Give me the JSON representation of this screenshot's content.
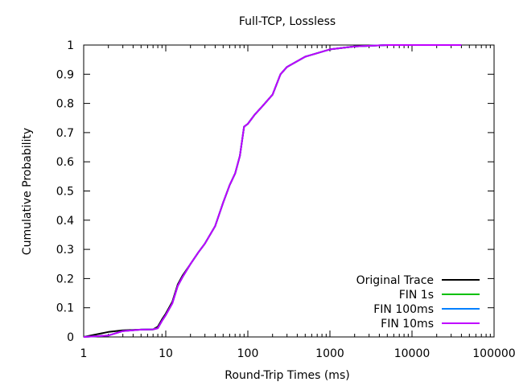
{
  "chart_data": {
    "type": "line",
    "title": "Full-TCP, Lossless",
    "xlabel": "Round-Trip Times (ms)",
    "ylabel": "Cumulative Probability",
    "x_scale": "log10",
    "xlim": [
      1,
      100000
    ],
    "ylim": [
      0,
      1
    ],
    "x_ticks": [
      1,
      10,
      100,
      1000,
      10000,
      100000
    ],
    "x_tick_labels": [
      "1",
      "10",
      "100",
      "1000",
      "10000",
      "100000"
    ],
    "y_ticks": [
      0,
      0.1,
      0.2,
      0.3,
      0.4,
      0.5,
      0.6,
      0.7,
      0.8,
      0.9,
      1
    ],
    "y_tick_labels": [
      "0",
      "0.1",
      "0.2",
      "0.3",
      "0.4",
      "0.5",
      "0.6",
      "0.7",
      "0.8",
      "0.9",
      "1"
    ],
    "grid": false,
    "legend_position": "bottom-right",
    "series": [
      {
        "name": "Original Trace",
        "color": "#000000",
        "points": [
          [
            1,
            0
          ],
          [
            1.5,
            0.01
          ],
          [
            2,
            0.017
          ],
          [
            3,
            0.023
          ],
          [
            5,
            0.025
          ],
          [
            7,
            0.026
          ],
          [
            8,
            0.035
          ],
          [
            9,
            0.06
          ],
          [
            10,
            0.08
          ],
          [
            12,
            0.12
          ],
          [
            14,
            0.18
          ],
          [
            16,
            0.21
          ],
          [
            20,
            0.25
          ],
          [
            25,
            0.29
          ],
          [
            30,
            0.32
          ],
          [
            40,
            0.38
          ],
          [
            50,
            0.46
          ],
          [
            60,
            0.52
          ],
          [
            70,
            0.56
          ],
          [
            80,
            0.62
          ],
          [
            90,
            0.72
          ],
          [
            100,
            0.73
          ],
          [
            120,
            0.76
          ],
          [
            150,
            0.79
          ],
          [
            200,
            0.83
          ],
          [
            250,
            0.9
          ],
          [
            300,
            0.925
          ],
          [
            500,
            0.96
          ],
          [
            1000,
            0.985
          ],
          [
            2000,
            0.995
          ],
          [
            5000,
            1
          ],
          [
            40000,
            1
          ]
        ]
      },
      {
        "name": "FIN 1s",
        "color": "#00c000",
        "points": [
          [
            1,
            0
          ],
          [
            2,
            0.005
          ],
          [
            3,
            0.02
          ],
          [
            5,
            0.025
          ],
          [
            7,
            0.026
          ],
          [
            8,
            0.03
          ],
          [
            9,
            0.055
          ],
          [
            10,
            0.075
          ],
          [
            12,
            0.115
          ],
          [
            14,
            0.175
          ],
          [
            16,
            0.205
          ],
          [
            20,
            0.25
          ],
          [
            25,
            0.29
          ],
          [
            30,
            0.32
          ],
          [
            40,
            0.38
          ],
          [
            50,
            0.46
          ],
          [
            60,
            0.52
          ],
          [
            70,
            0.56
          ],
          [
            80,
            0.62
          ],
          [
            90,
            0.72
          ],
          [
            100,
            0.73
          ],
          [
            120,
            0.76
          ],
          [
            150,
            0.79
          ],
          [
            200,
            0.83
          ],
          [
            250,
            0.9
          ],
          [
            300,
            0.925
          ],
          [
            500,
            0.96
          ],
          [
            1000,
            0.985
          ],
          [
            2000,
            0.995
          ],
          [
            5000,
            1
          ],
          [
            40000,
            1
          ]
        ]
      },
      {
        "name": "FIN 100ms",
        "color": "#0080ff",
        "points": [
          [
            1,
            0
          ],
          [
            2,
            0.005
          ],
          [
            3,
            0.02
          ],
          [
            5,
            0.025
          ],
          [
            7,
            0.026
          ],
          [
            8,
            0.03
          ],
          [
            9,
            0.055
          ],
          [
            10,
            0.075
          ],
          [
            12,
            0.115
          ],
          [
            14,
            0.175
          ],
          [
            16,
            0.205
          ],
          [
            20,
            0.25
          ],
          [
            25,
            0.29
          ],
          [
            30,
            0.32
          ],
          [
            40,
            0.38
          ],
          [
            50,
            0.46
          ],
          [
            60,
            0.52
          ],
          [
            70,
            0.56
          ],
          [
            80,
            0.62
          ],
          [
            90,
            0.72
          ],
          [
            100,
            0.73
          ],
          [
            120,
            0.76
          ],
          [
            150,
            0.79
          ],
          [
            200,
            0.83
          ],
          [
            250,
            0.9
          ],
          [
            300,
            0.925
          ],
          [
            500,
            0.96
          ],
          [
            1000,
            0.985
          ],
          [
            2000,
            0.995
          ],
          [
            5000,
            1
          ],
          [
            40000,
            1
          ]
        ]
      },
      {
        "name": "FIN 10ms",
        "color": "#c000ff",
        "points": [
          [
            1,
            0
          ],
          [
            2,
            0.005
          ],
          [
            3,
            0.02
          ],
          [
            5,
            0.025
          ],
          [
            7,
            0.026
          ],
          [
            8,
            0.03
          ],
          [
            9,
            0.055
          ],
          [
            10,
            0.075
          ],
          [
            12,
            0.115
          ],
          [
            14,
            0.175
          ],
          [
            16,
            0.205
          ],
          [
            20,
            0.25
          ],
          [
            25,
            0.29
          ],
          [
            30,
            0.32
          ],
          [
            40,
            0.38
          ],
          [
            50,
            0.46
          ],
          [
            60,
            0.52
          ],
          [
            70,
            0.56
          ],
          [
            80,
            0.62
          ],
          [
            90,
            0.72
          ],
          [
            100,
            0.73
          ],
          [
            120,
            0.76
          ],
          [
            150,
            0.79
          ],
          [
            200,
            0.83
          ],
          [
            250,
            0.9
          ],
          [
            300,
            0.925
          ],
          [
            500,
            0.96
          ],
          [
            1000,
            0.985
          ],
          [
            2000,
            0.995
          ],
          [
            5000,
            1
          ],
          [
            40000,
            1
          ]
        ]
      }
    ]
  }
}
